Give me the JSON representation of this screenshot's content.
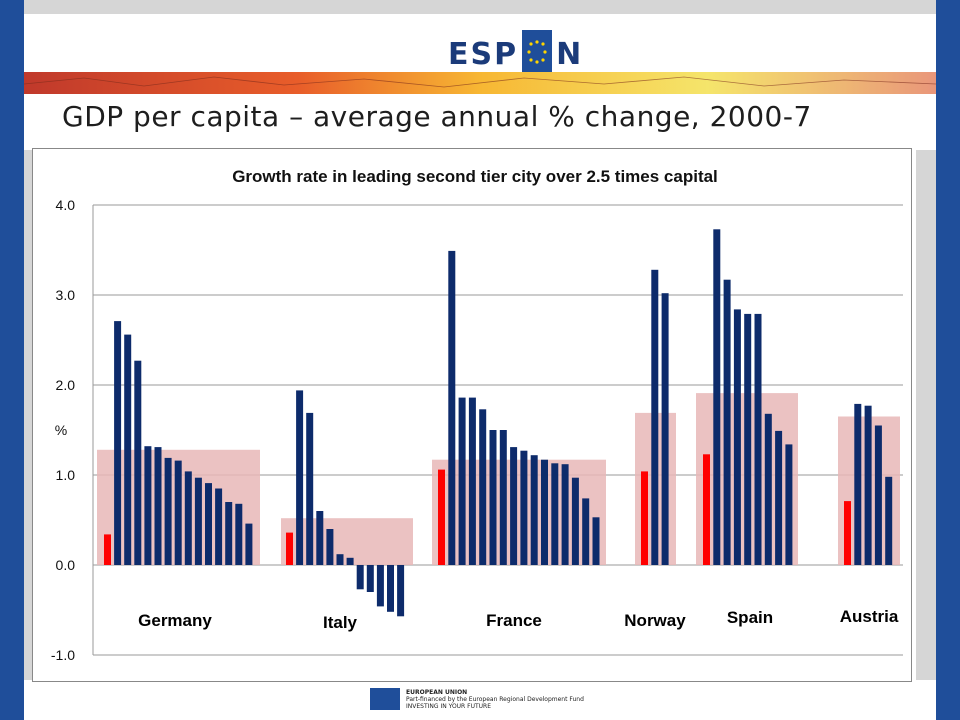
{
  "header": {
    "logo_text_left": "ESP",
    "logo_text_right": "N"
  },
  "slide_title": "GDP per capita – average annual % change, 2000-7",
  "footer": {
    "line1": "EUROPEAN UNION",
    "line2": "Part-financed by the European Regional Development Fund",
    "line3": "INVESTING IN YOUR FUTURE"
  },
  "colors": {
    "side_bars": "#1f4e9a",
    "bar_navy": "#0d2b6b",
    "bar_red": "#ff0000",
    "band_pink": "#e7b7b7"
  },
  "chart_data": {
    "type": "bar",
    "title": "Growth rate in leading second tier city over 2.5 times capital",
    "ylabel": "%",
    "ylim": [
      -1.0,
      4.0
    ],
    "yticks": [
      "4.0",
      "3.0",
      "2.0",
      "1.0",
      "0.0",
      "-1.0"
    ],
    "grid": true,
    "legend": "none",
    "notes": "Red bar = capital city; navy bars = other cities; shaded band = national average",
    "groups": [
      {
        "country": "Germany",
        "national_avg": 1.28,
        "capital": 0.34,
        "cities": [
          2.71,
          2.56,
          2.27,
          1.32,
          1.31,
          1.19,
          1.16,
          1.04,
          0.97,
          0.91,
          0.85,
          0.7,
          0.68,
          0.46
        ]
      },
      {
        "country": "Italy",
        "national_avg": 0.52,
        "capital": 0.36,
        "cities": [
          1.94,
          1.69,
          0.6,
          0.4,
          0.12,
          0.08,
          -0.27,
          -0.3,
          -0.46,
          -0.52,
          -0.57
        ]
      },
      {
        "country": "France",
        "national_avg": 1.17,
        "capital": 1.06,
        "cities": [
          3.49,
          1.86,
          1.86,
          1.73,
          1.5,
          1.5,
          1.31,
          1.27,
          1.22,
          1.17,
          1.13,
          1.12,
          0.97,
          0.74,
          0.53
        ]
      },
      {
        "country": "Norway",
        "national_avg": 1.69,
        "capital": 1.04,
        "cities": [
          3.28,
          3.02
        ]
      },
      {
        "country": "Spain",
        "national_avg": 1.91,
        "capital": 1.23,
        "cities": [
          3.73,
          3.17,
          2.84,
          2.79,
          2.79,
          1.68,
          1.49,
          1.34
        ]
      },
      {
        "country": "Austria",
        "national_avg": 1.65,
        "capital": 0.71,
        "cities": [
          1.79,
          1.77,
          1.55,
          0.98
        ]
      }
    ]
  }
}
